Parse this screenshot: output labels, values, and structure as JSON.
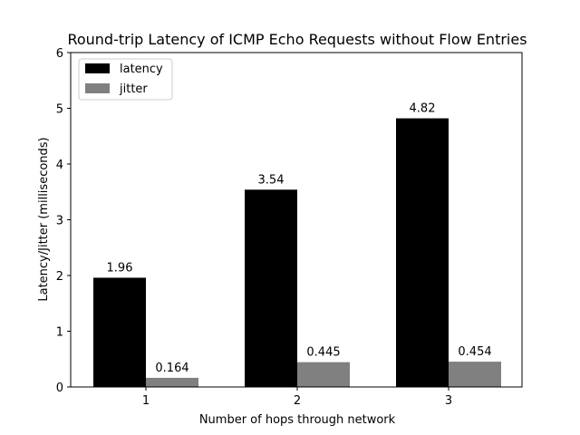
{
  "chart_data": {
    "type": "bar",
    "title": "Round-trip Latency of ICMP Echo Requests without Flow Entries",
    "xlabel": "Number of hops through network",
    "ylabel": "Latency/Jitter (milliseconds)",
    "categories": [
      "1",
      "2",
      "3"
    ],
    "ylim": [
      0,
      6
    ],
    "yticks": [
      0,
      1,
      2,
      3,
      4,
      5,
      6
    ],
    "grid": false,
    "legend_position": "top-left",
    "series": [
      {
        "name": "latency",
        "values": [
          1.96,
          3.54,
          4.82
        ],
        "labels": [
          "1.96",
          "3.54",
          "4.82"
        ],
        "color": "#000000"
      },
      {
        "name": "jitter",
        "values": [
          0.164,
          0.445,
          0.454
        ],
        "labels": [
          "0.164",
          "0.445",
          "0.454"
        ],
        "color": "#808080"
      }
    ]
  }
}
